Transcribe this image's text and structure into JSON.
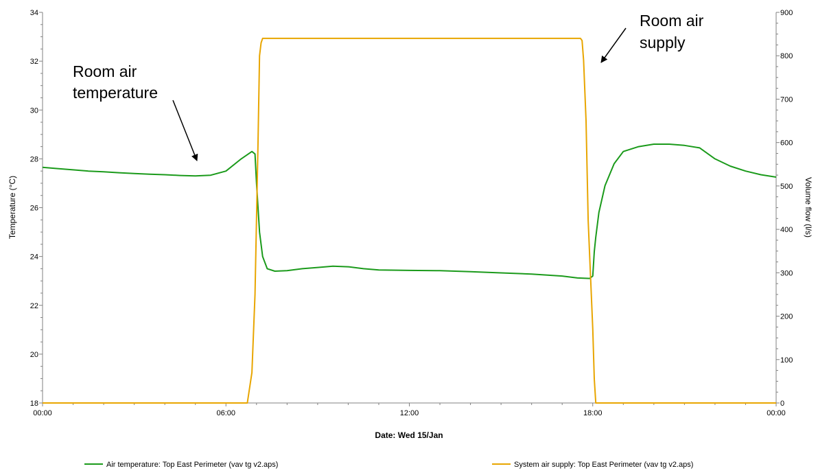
{
  "chart_data": {
    "type": "line",
    "xlabel": "Date: Wed 15/Jan",
    "ylabel_left": "Temperature (°C)",
    "ylabel_right": "Volume flow (l/s)",
    "x_ticks": [
      "00:00",
      "06:00",
      "12:00",
      "18:00",
      "00:00"
    ],
    "x_range_hours": [
      0,
      24
    ],
    "ylim_left": [
      18,
      34
    ],
    "yticks_left": [
      "18",
      "20",
      "22",
      "24",
      "26",
      "28",
      "30",
      "32",
      "34"
    ],
    "ylim_right": [
      0,
      900
    ],
    "yticks_right": [
      "0",
      "100",
      "200",
      "300",
      "400",
      "500",
      "600",
      "700",
      "800",
      "900"
    ],
    "grid": false,
    "legend_position": "bottom",
    "series": [
      {
        "name": "Air temperature: Top East Perimeter (vav tg v2.aps)",
        "axis": "left",
        "color": "#1a9a1a",
        "x": [
          0,
          0.5,
          1,
          1.5,
          2,
          2.5,
          3,
          3.5,
          4,
          4.5,
          5,
          5.5,
          6,
          6.5,
          6.85,
          6.95,
          7.0,
          7.1,
          7.2,
          7.35,
          7.6,
          8,
          8.5,
          9,
          9.5,
          10,
          10.5,
          11,
          12,
          13,
          14,
          15,
          16,
          17,
          17.5,
          17.9,
          18.0,
          18.05,
          18.1,
          18.2,
          18.4,
          18.7,
          19.0,
          19.5,
          20,
          20.5,
          21,
          21.5,
          22,
          22.5,
          23,
          23.5,
          24
        ],
        "y": [
          27.65,
          27.6,
          27.55,
          27.5,
          27.47,
          27.43,
          27.4,
          27.37,
          27.35,
          27.32,
          27.3,
          27.33,
          27.5,
          28.0,
          28.3,
          28.2,
          27.0,
          25.0,
          24.0,
          23.5,
          23.4,
          23.42,
          23.5,
          23.55,
          23.6,
          23.58,
          23.5,
          23.45,
          23.43,
          23.42,
          23.38,
          23.33,
          23.28,
          23.2,
          23.12,
          23.1,
          23.2,
          24.2,
          24.8,
          25.8,
          26.9,
          27.8,
          28.3,
          28.5,
          28.6,
          28.6,
          28.55,
          28.45,
          28.0,
          27.7,
          27.5,
          27.35,
          27.25
        ]
      },
      {
        "name": "System air supply: Top East Perimeter (vav tg v2.aps)",
        "axis": "right",
        "color": "#e8a500",
        "x": [
          0,
          6.7,
          6.85,
          6.95,
          7.05,
          7.1,
          7.15,
          7.2,
          7.4,
          7.55,
          12,
          17.6,
          17.65,
          17.7,
          17.78,
          17.85,
          18.0,
          18.05,
          18.1,
          18.15,
          18.2,
          24
        ],
        "y": [
          0,
          0,
          70,
          250,
          600,
          800,
          830,
          840,
          840,
          840,
          840,
          840,
          835,
          790,
          650,
          420,
          170,
          55,
          0,
          0,
          0,
          0
        ]
      }
    ],
    "annotations": [
      {
        "lines": [
          "Room air",
          "temperature"
        ]
      },
      {
        "lines": [
          "Room air",
          "supply"
        ]
      }
    ]
  }
}
